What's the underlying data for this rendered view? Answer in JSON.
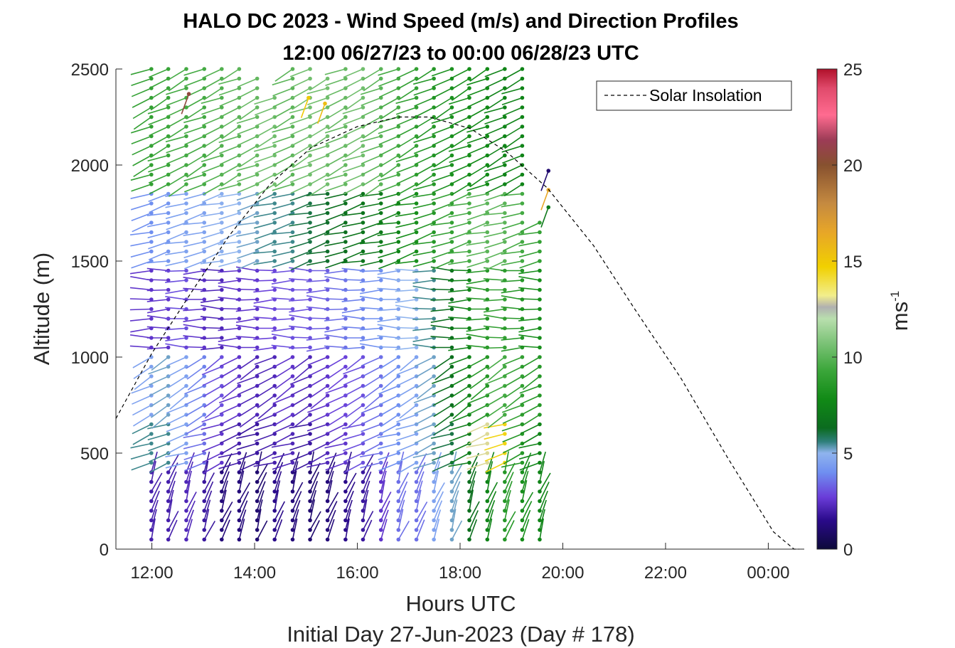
{
  "chart_data": {
    "type": "wind-barb-profile",
    "title": "HALO DC 2023 - Wind Speed (m/s) and Direction Profiles",
    "subtitle": "12:00 06/27/23 to 00:00 06/28/23  UTC",
    "xlabel": "Hours UTC",
    "xlabel2": "Initial Day 27-Jun-2023 (Day # 178)",
    "ylabel": "Altitude (m)",
    "colorbar_label": "ms",
    "colorbar_label_exp": "-1",
    "xlim_hours": [
      11.3,
      24.7
    ],
    "ylim": [
      0,
      2500
    ],
    "x_ticks": [
      {
        "value": 12,
        "label": "12:00"
      },
      {
        "value": 14,
        "label": "14:00"
      },
      {
        "value": 16,
        "label": "16:00"
      },
      {
        "value": 18,
        "label": "18:00"
      },
      {
        "value": 20,
        "label": "20:00"
      },
      {
        "value": 22,
        "label": "22:00"
      },
      {
        "value": 24,
        "label": "00:00"
      }
    ],
    "y_ticks": [
      {
        "value": 0,
        "label": "0"
      },
      {
        "value": 500,
        "label": "500"
      },
      {
        "value": 1000,
        "label": "1000"
      },
      {
        "value": 1500,
        "label": "1500"
      },
      {
        "value": 2000,
        "label": "2000"
      },
      {
        "value": 2500,
        "label": "2500"
      }
    ],
    "clim": [
      0,
      25
    ],
    "colorbar_ticks": [
      {
        "value": 0,
        "label": "0"
      },
      {
        "value": 5,
        "label": "5"
      },
      {
        "value": 10,
        "label": "10"
      },
      {
        "value": 15,
        "label": "15"
      },
      {
        "value": 20,
        "label": "20"
      },
      {
        "value": 25,
        "label": "25"
      }
    ],
    "colormap": [
      {
        "v": 0,
        "c": "#0d0a3a"
      },
      {
        "v": 1.5,
        "c": "#2a0a8a"
      },
      {
        "v": 2.7,
        "c": "#6a3cd8"
      },
      {
        "v": 4.0,
        "c": "#6f8ff0"
      },
      {
        "v": 5.0,
        "c": "#8fb4ee"
      },
      {
        "v": 5.6,
        "c": "#2e7f7a"
      },
      {
        "v": 6.3,
        "c": "#0b6b1f"
      },
      {
        "v": 7.8,
        "c": "#118a16"
      },
      {
        "v": 9.3,
        "c": "#3ba63a"
      },
      {
        "v": 10.8,
        "c": "#7fc47a"
      },
      {
        "v": 12.0,
        "c": "#b9dfae"
      },
      {
        "v": 12.6,
        "c": "#b0b0b0"
      },
      {
        "v": 13.2,
        "c": "#f2ee8c"
      },
      {
        "v": 14.7,
        "c": "#f1d000"
      },
      {
        "v": 16.5,
        "c": "#e7a628"
      },
      {
        "v": 18.0,
        "c": "#c58a40"
      },
      {
        "v": 20.0,
        "c": "#87512f"
      },
      {
        "v": 21.3,
        "c": "#9c3c56"
      },
      {
        "v": 22.6,
        "c": "#ff6b90"
      },
      {
        "v": 24.0,
        "c": "#e04a6b"
      },
      {
        "v": 25.0,
        "c": "#b0102a"
      }
    ],
    "legend": {
      "label": "Solar Insolation",
      "position": "top-right"
    },
    "solar_insolation": [
      {
        "hour": 11.3,
        "alt": 680
      },
      {
        "hour": 12.0,
        "alt": 1020
      },
      {
        "hour": 12.8,
        "alt": 1350
      },
      {
        "hour": 13.5,
        "alt": 1630
      },
      {
        "hour": 14.3,
        "alt": 1900
      },
      {
        "hour": 15.1,
        "alt": 2090
      },
      {
        "hour": 16.0,
        "alt": 2200
      },
      {
        "hour": 16.8,
        "alt": 2250
      },
      {
        "hour": 17.4,
        "alt": 2250
      },
      {
        "hour": 18.2,
        "alt": 2190
      },
      {
        "hour": 18.9,
        "alt": 2070
      },
      {
        "hour": 19.7,
        "alt": 1880
      },
      {
        "hour": 20.6,
        "alt": 1580
      },
      {
        "hour": 21.4,
        "alt": 1250
      },
      {
        "hour": 22.3,
        "alt": 890
      },
      {
        "hour": 23.2,
        "alt": 480
      },
      {
        "hour": 24.1,
        "alt": 90
      },
      {
        "hour": 24.5,
        "alt": 0
      },
      {
        "hour": 24.6,
        "alt": 0
      }
    ],
    "profiles": {
      "times_hours": [
        11.99,
        12.32,
        12.67,
        13.02,
        13.36,
        13.7,
        14.05,
        14.39,
        14.74,
        15.08,
        15.42,
        15.77,
        16.11,
        16.46,
        16.8,
        17.15,
        17.49,
        17.84,
        18.18,
        18.53,
        18.87,
        19.21,
        19.55
      ],
      "altitude_start_m": 50,
      "altitude_step_m": 50,
      "altitude_tops_m": [
        2500,
        2500,
        2500,
        2500,
        2500,
        2500,
        2450,
        2350,
        2500,
        2500,
        2450,
        2500,
        2500,
        2500,
        2500,
        2500,
        2500,
        2500,
        2500,
        2500,
        2500,
        2500,
        1700
      ],
      "wind_speed_bands": [
        {
          "top": 400,
          "speed_ms": [
            2.0,
            2.0,
            2.2,
            1.8,
            1.2,
            1.2,
            1.0,
            1.5,
            1.2,
            1.0,
            1.2,
            1.5,
            1.8,
            2.5,
            3.5,
            3.5,
            4.5,
            5.2,
            6.5,
            7.5,
            8.5,
            8.0,
            7.5
          ]
        },
        {
          "top": 650,
          "speed_ms": [
            5.5,
            5.5,
            4.5,
            3.5,
            2.5,
            2.0,
            1.8,
            2.0,
            2.2,
            1.8,
            2.2,
            2.5,
            3.0,
            3.5,
            4.0,
            4.5,
            5.2,
            6.0,
            7.2,
            13.0,
            14.5,
            8.5,
            7.5
          ]
        },
        {
          "top": 1000,
          "speed_ms": [
            4.5,
            5.2,
            4.5,
            3.8,
            3.0,
            2.5,
            2.2,
            2.2,
            2.5,
            2.2,
            2.5,
            2.8,
            3.0,
            3.5,
            4.0,
            4.5,
            5.2,
            6.5,
            7.5,
            8.5,
            9.5,
            9.0,
            8.5
          ]
        },
        {
          "top": 1450,
          "speed_ms": [
            2.5,
            2.5,
            3.0,
            2.5,
            2.2,
            2.5,
            2.5,
            2.8,
            3.0,
            3.0,
            3.2,
            3.5,
            3.8,
            4.0,
            4.5,
            5.0,
            5.5,
            6.5,
            7.5,
            8.5,
            9.0,
            8.5,
            8.0
          ]
        },
        {
          "top": 1850,
          "speed_ms": [
            4.0,
            4.2,
            4.5,
            4.5,
            4.8,
            5.0,
            5.2,
            5.5,
            5.5,
            6.0,
            6.2,
            6.5,
            6.8,
            7.0,
            7.5,
            8.0,
            8.5,
            9.0,
            9.5,
            10.0,
            10.0,
            9.5,
            9.0
          ]
        },
        {
          "top": 2500,
          "speed_ms": [
            9.0,
            9.2,
            9.5,
            9.5,
            9.8,
            10.0,
            10.2,
            10.5,
            10.0,
            10.5,
            10.5,
            10.2,
            10.5,
            10.0,
            9.5,
            9.0,
            8.5,
            8.2,
            8.0,
            7.8,
            7.5,
            7.5,
            8.0
          ]
        }
      ],
      "wind_direction_deg": [
        {
          "top": 400,
          "dir_deg": 20
        },
        {
          "top": 650,
          "dir_deg": 250
        },
        {
          "top": 1000,
          "dir_deg": 240
        },
        {
          "top": 1450,
          "dir_deg": 270
        },
        {
          "top": 1850,
          "dir_deg": 255
        },
        {
          "top": 2500,
          "dir_deg": 245
        }
      ],
      "outliers": [
        {
          "hour": 12.72,
          "alt": 2370,
          "speed_ms": 20.5
        },
        {
          "hour": 15.05,
          "alt": 2350,
          "speed_ms": 15.0
        },
        {
          "hour": 15.37,
          "alt": 2320,
          "speed_ms": 15.5
        },
        {
          "hour": 19.72,
          "alt": 1970,
          "speed_ms": 1.0
        },
        {
          "hour": 19.72,
          "alt": 1870,
          "speed_ms": 16.5
        },
        {
          "hour": 19.72,
          "alt": 1780,
          "speed_ms": 7.0
        }
      ]
    }
  }
}
